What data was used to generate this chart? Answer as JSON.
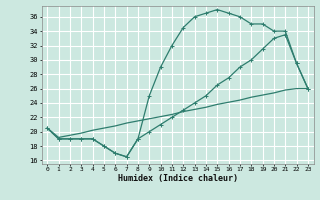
{
  "title": "",
  "xlabel": "Humidex (Indice chaleur)",
  "bg_color": "#cce8e0",
  "grid_color": "#ffffff",
  "line_color": "#2e7d6e",
  "xlim": [
    -0.5,
    23.5
  ],
  "ylim": [
    15.5,
    37.5
  ],
  "xticks": [
    0,
    1,
    2,
    3,
    4,
    5,
    6,
    7,
    8,
    9,
    10,
    11,
    12,
    13,
    14,
    15,
    16,
    17,
    18,
    19,
    20,
    21,
    22,
    23
  ],
  "yticks": [
    16,
    18,
    20,
    22,
    24,
    26,
    28,
    30,
    32,
    34,
    36
  ],
  "line1_x": [
    0,
    1,
    2,
    3,
    4,
    5,
    6,
    7,
    8,
    9,
    10,
    11,
    12,
    13,
    14,
    15,
    16,
    17,
    18,
    19,
    20,
    21,
    22,
    23
  ],
  "line1_y": [
    20.5,
    19,
    19,
    19,
    19,
    18,
    17,
    16.5,
    19,
    25,
    29,
    32,
    34.5,
    36,
    36.5,
    37,
    36.5,
    36,
    35,
    35,
    34,
    34,
    29.5,
    26
  ],
  "line2_x": [
    0,
    1,
    2,
    3,
    4,
    5,
    6,
    7,
    8,
    9,
    10,
    11,
    12,
    13,
    14,
    15,
    16,
    17,
    18,
    19,
    20,
    21,
    22,
    23
  ],
  "line2_y": [
    20.5,
    19,
    19,
    19,
    19,
    18,
    17,
    16.5,
    19,
    20,
    21,
    22,
    23,
    24,
    25,
    26.5,
    27.5,
    29,
    30,
    31.5,
    33,
    33.5,
    29.5,
    26
  ],
  "line3_x": [
    0,
    1,
    2,
    3,
    4,
    5,
    6,
    7,
    8,
    9,
    10,
    11,
    12,
    13,
    14,
    15,
    16,
    17,
    18,
    19,
    20,
    21,
    22,
    23
  ],
  "line3_y": [
    20.5,
    19.2,
    19.5,
    19.8,
    20.2,
    20.5,
    20.8,
    21.2,
    21.5,
    21.8,
    22.1,
    22.4,
    22.8,
    23.1,
    23.4,
    23.8,
    24.1,
    24.4,
    24.8,
    25.1,
    25.4,
    25.8,
    26.0,
    26.0
  ]
}
